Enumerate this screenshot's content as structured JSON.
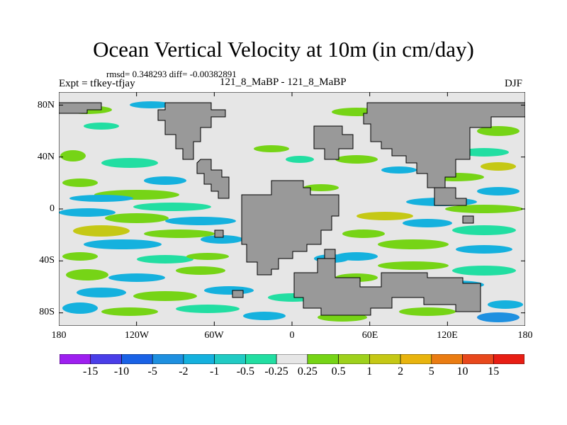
{
  "figure": {
    "title": "Ocean Vertical Velocity at 10m (in cm/day)",
    "stats": "rmsd= 0.348293 diff= -0.00382891",
    "experiment": "Expt = tfkey-tfjay",
    "subtitle": "121_8_MaBP - 121_8_MaBP",
    "season": "DJF"
  },
  "map": {
    "projection": "cylindrical-equidistant",
    "lon_range": [
      -180,
      180
    ],
    "lat_range": [
      -90,
      90
    ],
    "land_color": "#999999",
    "near_zero_color": "#e6e6e6",
    "lat_ticks": [
      {
        "value": 80,
        "label": "80N"
      },
      {
        "value": 40,
        "label": "40N"
      },
      {
        "value": 0,
        "label": "0"
      },
      {
        "value": -40,
        "label": "40S"
      },
      {
        "value": -80,
        "label": "80S"
      }
    ],
    "lon_ticks": [
      {
        "value": -180,
        "label": "180"
      },
      {
        "value": -120,
        "label": "120W"
      },
      {
        "value": -60,
        "label": "60W"
      },
      {
        "value": 0,
        "label": "0"
      },
      {
        "value": 60,
        "label": "60E"
      },
      {
        "value": 120,
        "label": "120E"
      },
      {
        "value": 180,
        "label": "180"
      }
    ]
  },
  "colorbar": {
    "labels": [
      "-15",
      "-10",
      "-5",
      "-2",
      "-1",
      "-0.5",
      "-0.25",
      "0.25",
      "0.5",
      "1",
      "2",
      "5",
      "10",
      "15"
    ],
    "colors": [
      "#9e1ff0",
      "#4a3ee8",
      "#1a62e6",
      "#1e90e0",
      "#15b1de",
      "#21cbc4",
      "#22dea2",
      "#e6e6e6",
      "#76d416",
      "#9ed11c",
      "#c5c815",
      "#e8b40e",
      "#ea7c12",
      "#e8481c",
      "#e81e14"
    ]
  }
}
